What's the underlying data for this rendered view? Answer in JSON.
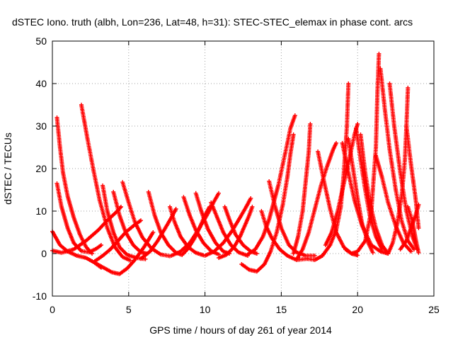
{
  "chart_data": {
    "type": "scatter",
    "title": "dSTEC Iono. truth (albh, Lon=236, Lat=48, h=31): STEC-STEC_elemax in phase cont. arcs",
    "xlabel": "GPS time / hours of day 261 of year 2014",
    "ylabel": "dSTEC  / TECUs",
    "xlim": [
      0,
      25
    ],
    "ylim": [
      -10,
      50
    ],
    "xticks": [
      0,
      5,
      10,
      15,
      20,
      25
    ],
    "yticks": [
      -10,
      0,
      10,
      20,
      30,
      40,
      50
    ],
    "grid": true,
    "marker": "plus",
    "colors": {
      "series": "#ff0000",
      "grid": "#a0a0a0",
      "axis": "#000000"
    },
    "series": [
      {
        "points": [
          [
            0.0,
            5.2
          ],
          [
            0.5,
            2.0
          ],
          [
            1.0,
            0.5
          ],
          [
            1.6,
            -0.5
          ],
          [
            2.2,
            -1.0
          ],
          [
            2.7,
            -2.0
          ],
          [
            3.2,
            -3.3
          ]
        ]
      },
      {
        "points": [
          [
            0.0,
            0.7
          ],
          [
            0.6,
            0.2
          ],
          [
            1.4,
            1.0
          ],
          [
            2.2,
            3.0
          ],
          [
            3.0,
            5.5
          ],
          [
            3.6,
            7.8
          ],
          [
            4.2,
            9.8
          ],
          [
            4.5,
            11.0
          ]
        ]
      },
      {
        "points": [
          [
            0.3,
            32.0
          ],
          [
            0.5,
            25.0
          ],
          [
            0.7,
            19.0
          ],
          [
            1.0,
            13.5
          ],
          [
            1.4,
            8.5
          ],
          [
            1.8,
            4.5
          ],
          [
            2.2,
            1.6
          ],
          [
            2.6,
            0.0
          ]
        ]
      },
      {
        "points": [
          [
            0.3,
            16.5
          ],
          [
            0.6,
            11.0
          ],
          [
            1.0,
            6.0
          ],
          [
            1.4,
            2.5
          ],
          [
            1.9,
            0.6
          ],
          [
            2.4,
            0.3
          ],
          [
            2.9,
            1.2
          ],
          [
            3.2,
            2.0
          ]
        ]
      },
      {
        "points": [
          [
            1.9,
            35.0
          ],
          [
            2.3,
            27.0
          ],
          [
            2.7,
            19.5
          ],
          [
            3.1,
            12.5
          ],
          [
            3.6,
            6.0
          ],
          [
            4.1,
            1.5
          ],
          [
            4.6,
            -0.8
          ],
          [
            5.1,
            -1.6
          ]
        ]
      },
      {
        "points": [
          [
            3.3,
            16.0
          ],
          [
            3.6,
            10.0
          ],
          [
            4.0,
            5.0
          ],
          [
            4.4,
            1.5
          ],
          [
            4.9,
            -0.3
          ],
          [
            5.5,
            -1.0
          ],
          [
            6.1,
            -1.3
          ]
        ]
      },
      {
        "points": [
          [
            2.7,
            -2.0
          ],
          [
            3.3,
            -3.2
          ],
          [
            3.9,
            -4.4
          ],
          [
            4.4,
            -4.8
          ],
          [
            4.9,
            -3.5
          ],
          [
            5.4,
            -1.5
          ],
          [
            6.0,
            1.5
          ],
          [
            6.6,
            5.0
          ]
        ]
      },
      {
        "points": [
          [
            2.7,
            -2.0
          ],
          [
            3.3,
            -0.5
          ],
          [
            3.8,
            1.0
          ],
          [
            4.3,
            3.0
          ],
          [
            4.8,
            5.0
          ],
          [
            5.3,
            6.5
          ],
          [
            5.8,
            7.8
          ]
        ]
      },
      {
        "points": [
          [
            4.0,
            14.5
          ],
          [
            4.4,
            9.0
          ],
          [
            4.8,
            5.0
          ],
          [
            5.3,
            2.0
          ],
          [
            5.8,
            0.3
          ],
          [
            6.2,
            0.0
          ]
        ]
      },
      {
        "points": [
          [
            4.6,
            16.8
          ],
          [
            5.0,
            12.0
          ],
          [
            5.4,
            7.5
          ],
          [
            5.9,
            3.8
          ],
          [
            6.5,
            1.2
          ],
          [
            7.1,
            -0.2
          ],
          [
            7.7,
            -0.6
          ]
        ]
      },
      {
        "points": [
          [
            6.3,
            14.5
          ],
          [
            6.7,
            9.0
          ],
          [
            7.1,
            5.0
          ],
          [
            7.6,
            2.0
          ],
          [
            8.1,
            0.2
          ],
          [
            8.5,
            -0.3
          ]
        ]
      },
      {
        "points": [
          [
            5.8,
            -1.2
          ],
          [
            6.4,
            0.5
          ],
          [
            6.9,
            3.0
          ],
          [
            7.4,
            6.0
          ],
          [
            7.8,
            8.5
          ],
          [
            8.1,
            10.5
          ]
        ]
      },
      {
        "points": [
          [
            7.7,
            11.0
          ],
          [
            8.0,
            7.5
          ],
          [
            8.4,
            4.0
          ],
          [
            8.9,
            1.5
          ],
          [
            9.4,
            0.2
          ],
          [
            9.9,
            -0.4
          ]
        ]
      },
      {
        "points": [
          [
            8.5,
            -0.3
          ],
          [
            8.9,
            1.2
          ],
          [
            9.3,
            3.5
          ],
          [
            9.7,
            6.5
          ],
          [
            10.0,
            9.0
          ],
          [
            10.3,
            11.0
          ]
        ]
      },
      {
        "points": [
          [
            7.8,
            -0.5
          ],
          [
            8.4,
            0.5
          ],
          [
            9.0,
            2.5
          ],
          [
            9.6,
            5.8
          ],
          [
            10.2,
            9.5
          ],
          [
            10.6,
            12.3
          ],
          [
            10.9,
            14.2
          ]
        ]
      },
      {
        "points": [
          [
            8.6,
            13.3
          ],
          [
            9.0,
            9.0
          ],
          [
            9.4,
            5.5
          ],
          [
            9.9,
            2.5
          ],
          [
            10.4,
            0.6
          ],
          [
            10.9,
            -0.2
          ]
        ]
      },
      {
        "points": [
          [
            9.4,
            14.2
          ],
          [
            9.8,
            9.5
          ],
          [
            10.2,
            5.7
          ],
          [
            10.7,
            2.5
          ],
          [
            11.2,
            0.5
          ],
          [
            11.6,
            0.0
          ]
        ]
      },
      {
        "points": [
          [
            10.4,
            12.0
          ],
          [
            10.8,
            8.5
          ],
          [
            11.2,
            5.0
          ],
          [
            11.7,
            2.0
          ],
          [
            12.2,
            0.3
          ],
          [
            12.8,
            -0.5
          ]
        ]
      },
      {
        "points": [
          [
            11.3,
            11.0
          ],
          [
            11.6,
            8.0
          ],
          [
            12.0,
            4.5
          ],
          [
            12.5,
            2.0
          ],
          [
            13.0,
            0.5
          ],
          [
            13.4,
            0.0
          ]
        ]
      },
      {
        "points": [
          [
            10.9,
            -1.0
          ],
          [
            11.4,
            -0.3
          ],
          [
            11.9,
            1.5
          ],
          [
            12.3,
            4.0
          ],
          [
            12.6,
            6.5
          ],
          [
            12.9,
            9.0
          ],
          [
            13.1,
            11.0
          ]
        ]
      },
      {
        "points": [
          [
            10.0,
            -0.5
          ],
          [
            10.6,
            0.5
          ],
          [
            11.2,
            2.5
          ],
          [
            11.8,
            5.5
          ],
          [
            12.3,
            8.5
          ],
          [
            12.7,
            11.0
          ],
          [
            13.0,
            13.0
          ]
        ]
      },
      {
        "points": [
          [
            12.4,
            -2.5
          ],
          [
            12.9,
            -3.8
          ],
          [
            13.4,
            -4.2
          ],
          [
            13.9,
            -2.5
          ],
          [
            14.3,
            0.5
          ],
          [
            14.7,
            5.0
          ],
          [
            15.1,
            11.5
          ],
          [
            15.4,
            18.0
          ],
          [
            15.6,
            23.5
          ],
          [
            15.8,
            28.0
          ]
        ]
      },
      {
        "points": [
          [
            12.8,
            -0.2
          ],
          [
            13.3,
            1.0
          ],
          [
            13.8,
            4.0
          ],
          [
            14.2,
            8.0
          ],
          [
            14.5,
            12.0
          ],
          [
            14.8,
            16.0
          ],
          [
            15.1,
            21.0
          ],
          [
            15.4,
            26.0
          ],
          [
            15.6,
            29.5
          ],
          [
            15.9,
            32.5
          ]
        ]
      },
      {
        "points": [
          [
            13.7,
            10.0
          ],
          [
            14.0,
            6.5
          ],
          [
            14.4,
            3.5
          ],
          [
            14.9,
            1.0
          ],
          [
            15.4,
            -0.5
          ],
          [
            16.0,
            -1.5
          ],
          [
            16.7,
            -1.2
          ]
        ]
      },
      {
        "points": [
          [
            14.2,
            17.0
          ],
          [
            14.6,
            11.0
          ],
          [
            15.0,
            6.0
          ],
          [
            15.5,
            2.0
          ],
          [
            16.0,
            0.3
          ],
          [
            16.6,
            -0.5
          ],
          [
            17.2,
            -0.5
          ]
        ]
      },
      {
        "points": [
          [
            16.0,
            -1.4
          ],
          [
            16.4,
            1.0
          ],
          [
            16.8,
            5.0
          ],
          [
            17.2,
            10.5
          ],
          [
            17.6,
            16.0
          ],
          [
            18.0,
            20.5
          ],
          [
            18.4,
            24.5
          ],
          [
            18.6,
            26.0
          ]
        ]
      },
      {
        "points": [
          [
            15.8,
            0.0
          ],
          [
            16.1,
            4.0
          ],
          [
            16.4,
            10.0
          ],
          [
            16.6,
            17.0
          ],
          [
            16.8,
            24.0
          ],
          [
            16.9,
            30.5
          ]
        ]
      },
      {
        "points": [
          [
            17.4,
            24.0
          ],
          [
            17.8,
            17.0
          ],
          [
            18.2,
            10.5
          ],
          [
            18.6,
            5.0
          ],
          [
            19.1,
            1.5
          ],
          [
            19.6,
            0.0
          ],
          [
            20.0,
            -0.4
          ]
        ]
      },
      {
        "points": [
          [
            16.7,
            -1.2
          ],
          [
            17.2,
            -1.5
          ],
          [
            17.7,
            -0.5
          ],
          [
            18.2,
            2.0
          ],
          [
            18.6,
            5.5
          ],
          [
            18.9,
            11.0
          ],
          [
            19.1,
            19.0
          ],
          [
            19.3,
            30.0
          ],
          [
            19.4,
            40.0
          ]
        ]
      },
      {
        "points": [
          [
            17.9,
            2.0
          ],
          [
            18.3,
            5.0
          ],
          [
            18.7,
            10.0
          ],
          [
            19.1,
            16.5
          ],
          [
            19.5,
            23.0
          ],
          [
            19.8,
            28.0
          ],
          [
            20.0,
            30.5
          ]
        ]
      },
      {
        "points": [
          [
            19.4,
            27.0
          ],
          [
            19.7,
            20.0
          ],
          [
            20.0,
            13.0
          ],
          [
            20.3,
            7.0
          ],
          [
            20.7,
            2.5
          ],
          [
            21.0,
            0.2
          ]
        ]
      },
      {
        "points": [
          [
            19.0,
            26.0
          ],
          [
            19.4,
            19.0
          ],
          [
            19.8,
            12.5
          ],
          [
            20.3,
            6.5
          ],
          [
            20.9,
            2.0
          ],
          [
            21.5,
            0.5
          ],
          [
            22.0,
            0.0
          ]
        ]
      },
      {
        "points": [
          [
            19.9,
            29.5
          ],
          [
            20.2,
            22.0
          ],
          [
            20.5,
            15.0
          ],
          [
            20.8,
            9.0
          ],
          [
            21.2,
            4.0
          ],
          [
            21.6,
            1.0
          ]
        ]
      },
      {
        "points": [
          [
            19.2,
            1.0
          ],
          [
            19.6,
            0.0
          ],
          [
            20.0,
            0.5
          ],
          [
            20.5,
            3.0
          ],
          [
            20.9,
            10.0
          ],
          [
            21.2,
            25.0
          ],
          [
            21.3,
            38.0
          ],
          [
            21.4,
            47.0
          ]
        ]
      },
      {
        "points": [
          [
            20.2,
            28.0
          ],
          [
            20.5,
            19.0
          ],
          [
            20.8,
            12.0
          ],
          [
            21.2,
            6.0
          ],
          [
            21.6,
            2.0
          ],
          [
            22.0,
            0.0
          ]
        ]
      },
      {
        "points": [
          [
            21.5,
            43.5
          ],
          [
            21.8,
            33.5
          ],
          [
            22.1,
            24.5
          ],
          [
            22.5,
            15.0
          ],
          [
            22.9,
            7.5
          ],
          [
            23.3,
            3.0
          ],
          [
            23.7,
            1.0
          ]
        ]
      },
      {
        "points": [
          [
            22.1,
            40.0
          ],
          [
            22.4,
            30.0
          ],
          [
            22.8,
            19.0
          ],
          [
            23.2,
            10.0
          ],
          [
            23.6,
            4.0
          ],
          [
            23.9,
            1.0
          ]
        ]
      },
      {
        "points": [
          [
            22.0,
            0.0
          ],
          [
            22.3,
            2.5
          ],
          [
            22.6,
            7.0
          ],
          [
            22.9,
            14.0
          ],
          [
            23.1,
            22.0
          ],
          [
            23.2,
            30.0
          ],
          [
            23.3,
            39.0
          ]
        ]
      },
      {
        "points": [
          [
            23.2,
            30.0
          ],
          [
            23.5,
            21.0
          ],
          [
            23.8,
            13.0
          ],
          [
            24.0,
            6.0
          ]
        ]
      },
      {
        "points": [
          [
            21.2,
            23.0
          ],
          [
            21.6,
            18.0
          ],
          [
            22.0,
            12.0
          ],
          [
            22.5,
            6.5
          ],
          [
            23.0,
            2.5
          ],
          [
            23.5,
            0.5
          ]
        ]
      },
      {
        "points": [
          [
            22.8,
            1.0
          ],
          [
            23.2,
            3.0
          ],
          [
            23.5,
            6.0
          ],
          [
            23.8,
            9.0
          ],
          [
            24.0,
            11.5
          ]
        ]
      },
      {
        "points": [
          [
            23.3,
            11.0
          ],
          [
            23.6,
            7.5
          ],
          [
            23.8,
            3.5
          ],
          [
            24.0,
            0.2
          ]
        ]
      }
    ]
  }
}
